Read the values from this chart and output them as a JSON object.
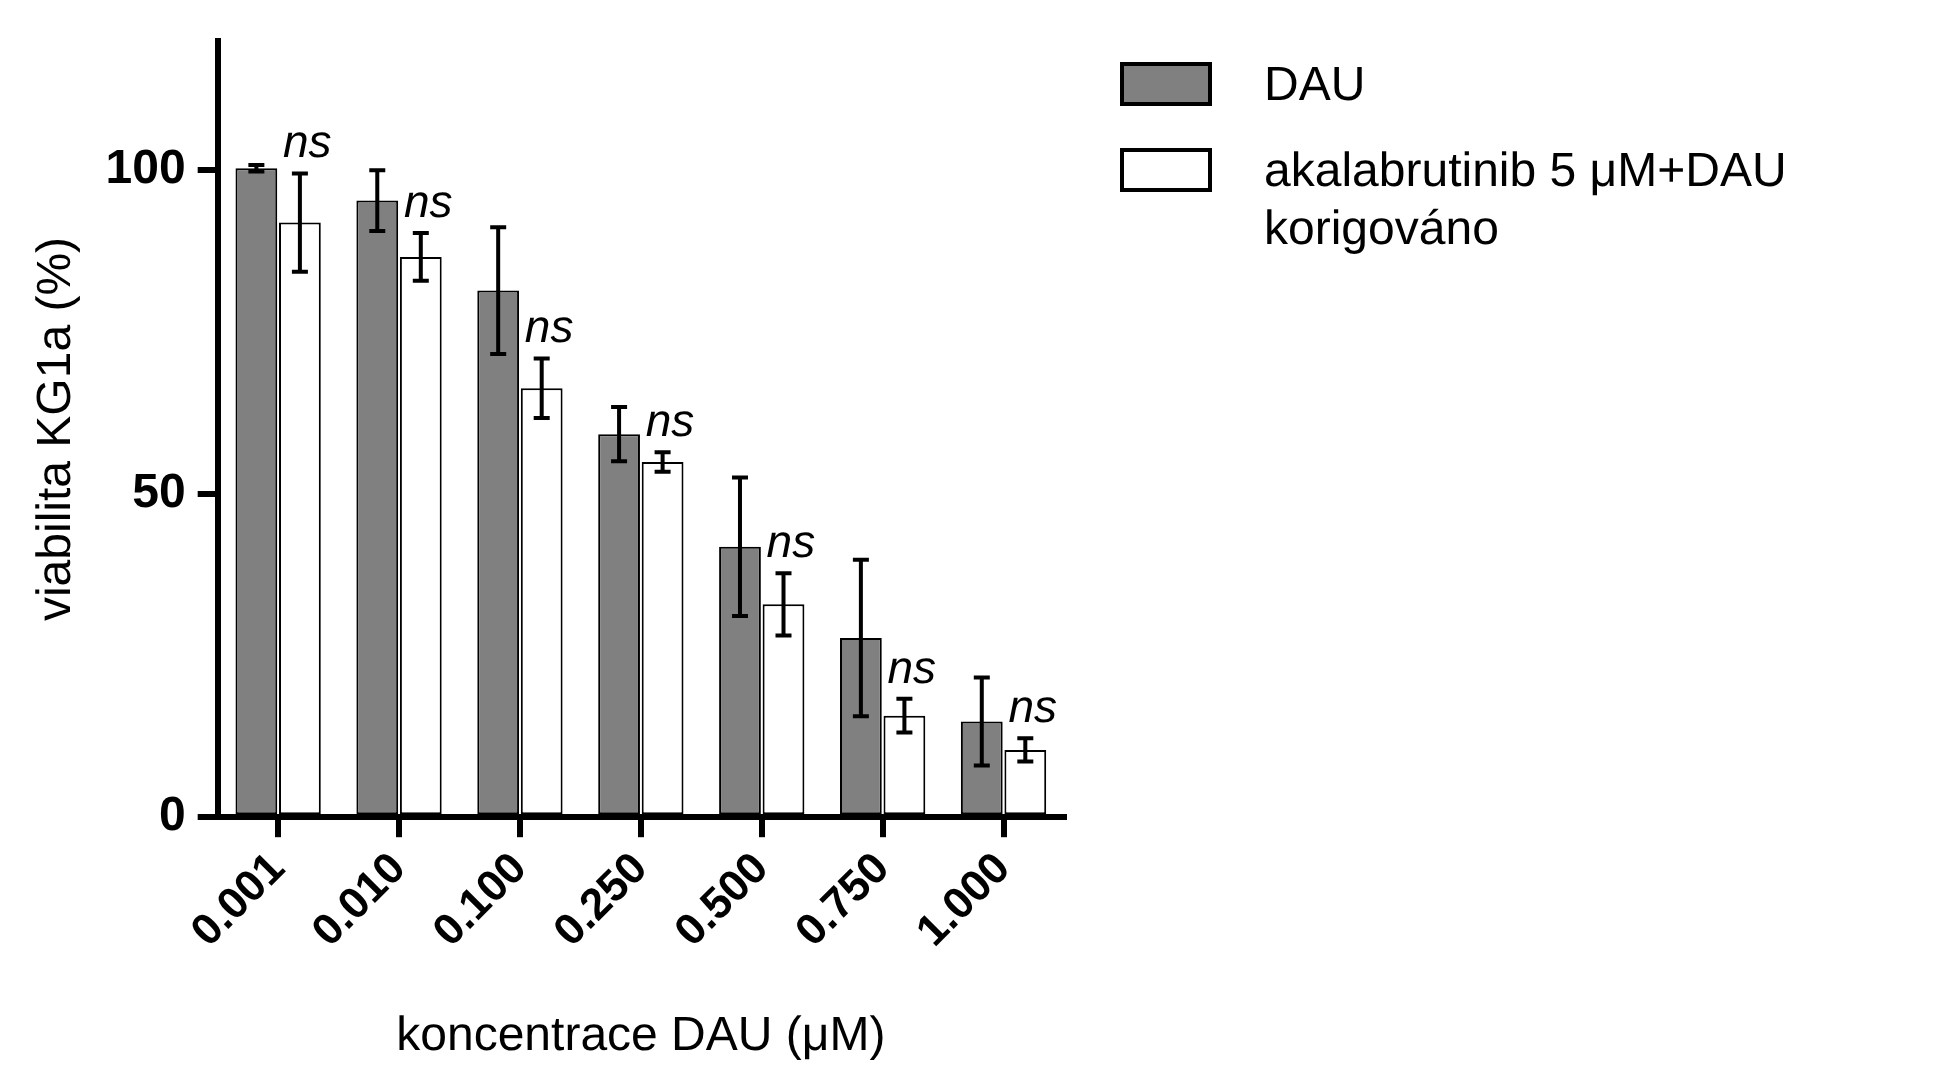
{
  "chart_data": {
    "type": "bar",
    "xlabel": "koncentrace DAU (μM)",
    "ylabel": "viabilita KG1a (%)",
    "categories": [
      "0.001",
      "0.010",
      "0.100",
      "0.250",
      "0.500",
      "0.750",
      "1.000"
    ],
    "series": [
      {
        "name": "DAU",
        "color": "#808080",
        "values": [
          100.3,
          95.3,
          81.4,
          59.2,
          41.8,
          27.7,
          14.8
        ],
        "errors": [
          0.5,
          4.7,
          9.8,
          4.2,
          10.7,
          12.1,
          6.8
        ]
      },
      {
        "name": "akalabrutinib 5 μM+DAU korigováno",
        "color": "#ffffff",
        "values": [
          91.9,
          86.6,
          66.3,
          54.9,
          32.9,
          15.7,
          10.4
        ],
        "errors": [
          7.6,
          3.7,
          4.6,
          1.5,
          4.8,
          2.6,
          1.8
        ]
      }
    ],
    "ylim": [
      0,
      120
    ],
    "yticks": [
      0,
      50,
      100
    ],
    "grid": false,
    "legend": "top right",
    "annotations": [
      {
        "text": "ns",
        "x": "0.001",
        "y": 99.5
      },
      {
        "text": "ns",
        "x": "0.010",
        "y": 90.3
      },
      {
        "text": "ns",
        "x": "0.100",
        "y": 70.9
      },
      {
        "text": "ns",
        "x": "0.250",
        "y": 56.4
      },
      {
        "text": "ns",
        "x": "0.500",
        "y": 37.7
      },
      {
        "text": "ns",
        "x": "0.750",
        "y": 18.3
      },
      {
        "text": "ns",
        "x": "1.000",
        "y": 12.2
      }
    ]
  }
}
